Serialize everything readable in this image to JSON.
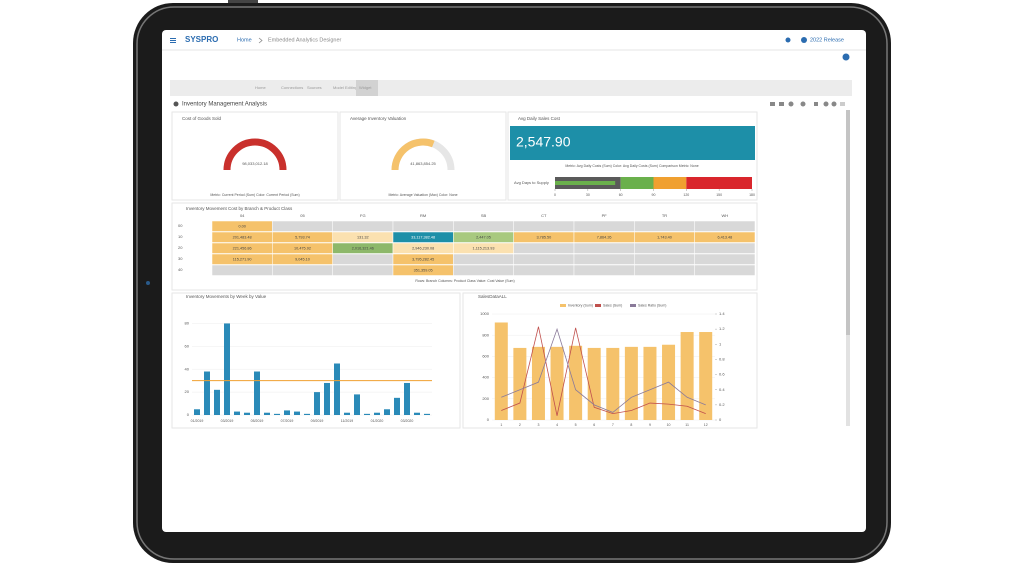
{
  "header": {
    "logo": "SYSPRO",
    "breadcrumb": [
      "Home",
      "Embedded Analytics Designer"
    ],
    "release": "2022 Release"
  },
  "tabs": [
    "Home",
    "Connections",
    "Sources",
    "Model Editing",
    "Widget"
  ],
  "dashboard_title": "Inventory Management Analysis",
  "gauges": [
    {
      "title": "Cost of Goods Sold",
      "value_label": "98,033,012.18",
      "fill": 1.0,
      "color": "#c9302c",
      "footnote": "Metric: Current Period (Sum)   Color: Current Period (Sum)"
    },
    {
      "title": "Average Inventory Valuation",
      "value_label": "41,863,854.25",
      "fill": 0.62,
      "color": "#f5c26b",
      "footnote": "Metric: Average Valuation (Max)   Color: None"
    }
  ],
  "kpi": {
    "title": "Avg Daily Sales Cost",
    "value": "2,547.90",
    "color": "#1d8fa8",
    "footnote": "Metric: Avg Daily Costs (Sum)   Color: Avg Daily Costs (Sum)   Comparison Metric: None"
  },
  "bullet": {
    "label": "Avg Days to Supply",
    "xlim": [
      0,
      180
    ],
    "xticks": [
      0,
      30,
      60,
      90,
      120,
      150,
      180
    ],
    "value": 55,
    "ranges": [
      {
        "from": 0,
        "to": 60,
        "color": "#5a5a5a"
      },
      {
        "from": 60,
        "to": 90,
        "color": "#6ab04c"
      },
      {
        "from": 90,
        "to": 120,
        "color": "#f0a030"
      },
      {
        "from": 120,
        "to": 180,
        "color": "#d9262c"
      }
    ]
  },
  "pivot": {
    "title": "Inventory Movement Cost by Branch & Product Class",
    "columns": [
      "04",
      "05",
      "FG",
      "RM",
      "SB",
      "CT",
      "PF",
      "TR",
      "WH"
    ],
    "rows": [
      {
        "label": "00",
        "cells": [
          "0.00",
          null,
          null,
          null,
          null,
          null,
          null,
          null,
          null
        ],
        "colors": [
          "#f5c26b",
          null,
          null,
          null,
          null,
          null,
          null,
          null,
          null
        ]
      },
      {
        "label": "10",
        "cells": [
          "201,483.48",
          "5,793.74",
          "131.32",
          "33,117,382.48",
          "2,447.05",
          "3,785.50",
          "7,864.26",
          "1,743.40",
          "6,413.48"
        ],
        "colors": [
          "#f5c26b",
          "#f5c26b",
          "#fbe1b0",
          "#1d8fa8",
          "#a8c97f",
          "#f5c26b",
          "#f5c26b",
          "#f5c26b",
          "#f5c26b"
        ]
      },
      {
        "label": "20",
        "cells": [
          "221,456.86",
          "10,475.92",
          "2,016,321.46",
          "2,946,230.08",
          "1,115,213.93",
          null,
          null,
          null,
          null
        ],
        "colors": [
          "#f5c26b",
          "#f5c26b",
          "#8db86a",
          "#fbe1b0",
          "#fbe1b0",
          null,
          null,
          null,
          null
        ]
      },
      {
        "label": "30",
        "cells": [
          "115,271.90",
          "9,045.10",
          null,
          "3,795,282.45",
          null,
          null,
          null,
          null,
          null
        ],
        "colors": [
          "#f5c26b",
          "#f5c26b",
          null,
          "#f5c26b",
          null,
          null,
          null,
          null,
          null
        ]
      },
      {
        "label": "40",
        "cells": [
          null,
          null,
          null,
          "351,359.05",
          null,
          null,
          null,
          null,
          null
        ],
        "colors": [
          null,
          null,
          null,
          "#f5c26b",
          null,
          null,
          null,
          null,
          null
        ]
      }
    ],
    "footnote": "Rows: Branch   Columns: Product Class   Value: Cost Value (Sum)"
  },
  "chart_data": [
    {
      "type": "bar",
      "title": "Inventory Movements by Week by Value",
      "categories": [
        "01/2019",
        null,
        null,
        "03/2019",
        null,
        null,
        "05/2019",
        null,
        null,
        "07/2019",
        null,
        null,
        "09/2019",
        null,
        null,
        "11/2019",
        null,
        null,
        "01/2020",
        null,
        null,
        "03/2020",
        null,
        null
      ],
      "values": [
        5,
        38,
        22,
        80,
        3,
        2,
        38,
        2,
        1,
        4,
        3,
        1,
        20,
        28,
        45,
        2,
        18,
        1,
        2,
        5,
        15,
        28,
        2,
        1
      ],
      "color": "#2a8ab8",
      "reference_line": 30,
      "reference_color": "#f0a030",
      "ylim": [
        0,
        90
      ],
      "yticks": [
        0,
        20,
        40,
        60,
        80
      ]
    },
    {
      "type": "combo",
      "title": "SalesDataALL",
      "categories": [
        "1",
        "2",
        "3",
        "4",
        "5",
        "6",
        "7",
        "8",
        "9",
        "10",
        "11",
        "12"
      ],
      "series": [
        {
          "name": "Inventory (Sum)",
          "color": "#f5c26b",
          "kind": "bar",
          "values": [
            920,
            680,
            690,
            690,
            700,
            680,
            680,
            690,
            690,
            710,
            830,
            830
          ]
        },
        {
          "name": "Sales (Sum)",
          "color": "#c0504d",
          "kind": "line",
          "values": [
            90,
            160,
            880,
            40,
            870,
            120,
            60,
            90,
            160,
            150,
            130,
            60
          ]
        },
        {
          "name": "Sales Ratio (Sum)",
          "color": "#8a7a9a",
          "kind": "line",
          "axis": "y2",
          "values": [
            0.3,
            0.4,
            0.5,
            1.2,
            0.4,
            0.2,
            0.1,
            0.3,
            0.4,
            0.5,
            0.3,
            0.2
          ]
        }
      ],
      "ylim": [
        0,
        1000
      ],
      "yticks": [
        0,
        200,
        400,
        600,
        800,
        1000
      ],
      "y2lim": [
        0,
        1.4
      ],
      "y2ticks": [
        0,
        0.2,
        0.4,
        0.6,
        0.8,
        1,
        1.2,
        1.4
      ]
    }
  ]
}
